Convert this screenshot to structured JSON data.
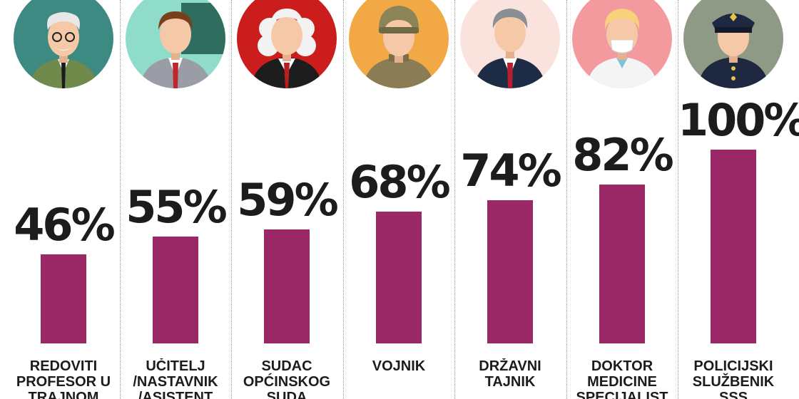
{
  "chart_data": {
    "type": "bar",
    "categories": [
      "REDOVITI PROFESOR U TRAJNOM",
      "UČITELJ /NASTAVNIK /ASISTENT",
      "SUDAC OPĆINSKOG SUDA",
      "VOJNIK",
      "DRŽAVNI TAJNIK",
      "DOKTOR MEDICINE SPECIJALIST",
      "POLICIJSKI SLUŽBENIK SSS"
    ],
    "label_lines": [
      "REDOVITI\nPROFESOR U\nTRAJNOM",
      "UČITELJ\n/NASTAVNIK\n/ASISTENT",
      "SUDAC\nOPĆINSKOG\nSUDA",
      "VOJNIK",
      "DRŽAVNI\nTAJNIK",
      "DOKTOR\nMEDICINE\nSPECIJALIST",
      "POLICIJSKI\nSLUŽBENIK\nSSS"
    ],
    "values": [
      46,
      55,
      59,
      68,
      74,
      82,
      100
    ],
    "value_labels": [
      "46%",
      "55%",
      "59%",
      "68%",
      "74%",
      "82%",
      "100%"
    ],
    "unit": "%",
    "ylim": [
      0,
      100
    ],
    "bar_color": "#9b2866",
    "grid": false
  },
  "avatars": [
    {
      "icon": "professor-icon",
      "bg": "#3d8a82"
    },
    {
      "icon": "teacher-icon",
      "bg": "#8fdccb"
    },
    {
      "icon": "judge-icon",
      "bg": "#cc1d1d"
    },
    {
      "icon": "soldier-icon",
      "bg": "#f2a945"
    },
    {
      "icon": "state-secretary-icon",
      "bg": "#fbe3dd"
    },
    {
      "icon": "doctor-icon",
      "bg": "#f39a9f"
    },
    {
      "icon": "police-officer-icon",
      "bg": "#8f9a86"
    }
  ]
}
